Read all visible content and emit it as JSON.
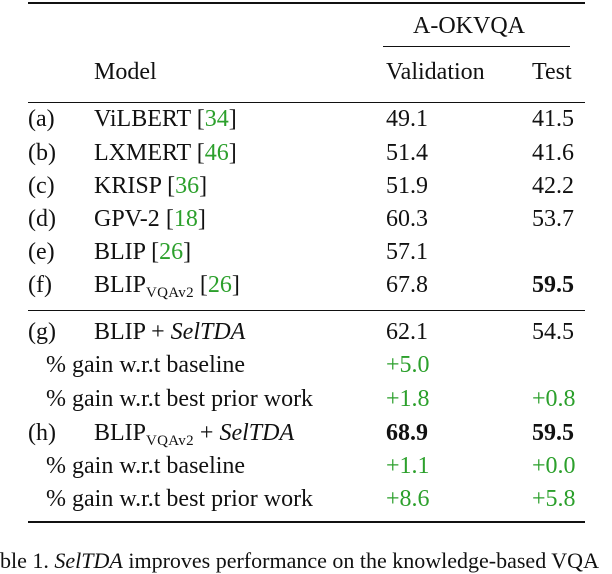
{
  "header": {
    "group": "A-OKVQA",
    "model_col": "Model",
    "val_col": "Validation",
    "test_col": "Test"
  },
  "rows": [
    {
      "id": "(a)",
      "model": "ViLBERT",
      "ref": "34",
      "val": "49.1",
      "test": "41.5"
    },
    {
      "id": "(b)",
      "model": "LXMERT",
      "ref": "46",
      "val": "51.4",
      "test": "41.6"
    },
    {
      "id": "(c)",
      "model": "KRISP",
      "ref": "36",
      "val": "51.9",
      "test": "42.2"
    },
    {
      "id": "(d)",
      "model": "GPV-2",
      "ref": "18",
      "val": "60.3",
      "test": "53.7"
    },
    {
      "id": "(e)",
      "model": "BLIP",
      "ref": "26",
      "val": "57.1",
      "test": ""
    },
    {
      "id": "(f)",
      "model": "BLIP",
      "sub": "VQAv2",
      "ref": "26",
      "val": "67.8",
      "test": "59.5"
    }
  ],
  "ours": [
    {
      "id": "(g)",
      "model": "BLIP",
      "plus": " + ",
      "method": "SelTDA",
      "val": "62.1",
      "test": "54.5",
      "gain_baseline_label": "% gain w.r.t baseline",
      "gain_baseline_val": "+5.0",
      "gain_baseline_test": "",
      "gain_prior_label": "% gain w.r.t best prior work",
      "gain_prior_val": "+1.8",
      "gain_prior_test": "+0.8"
    },
    {
      "id": "(h)",
      "model": "BLIP",
      "sub": "VQAv2",
      "plus": " + ",
      "method": "SelTDA",
      "val": "68.9",
      "test": "59.5",
      "gain_baseline_label": "% gain w.r.t baseline",
      "gain_baseline_val": "+1.1",
      "gain_baseline_test": "+0.0",
      "gain_prior_label": "% gain w.r.t best prior work",
      "gain_prior_val": "+8.6",
      "gain_prior_test": "+5.8"
    }
  ],
  "caption": {
    "prefix": "ble 1. ",
    "method": "SelTDA",
    "rest": " improves performance on the knowledge-based VQA"
  },
  "colors": {
    "citation": "#2ca02c",
    "gain": "#2ca02c",
    "text": "#111111"
  }
}
